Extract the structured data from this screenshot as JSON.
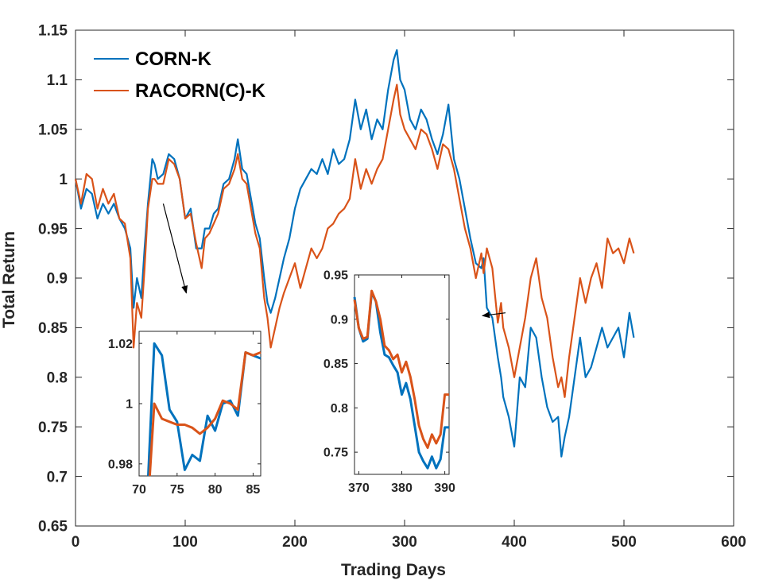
{
  "chart_data": [
    {
      "type": "line",
      "role": "main",
      "title": "",
      "xlabel": "Trading Days",
      "ylabel": "Total Return",
      "xlim": [
        0,
        600
      ],
      "ylim": [
        0.65,
        1.15
      ],
      "xticks": [
        0,
        100,
        200,
        300,
        400,
        500,
        600
      ],
      "yticks": [
        0.65,
        0.7,
        0.75,
        0.8,
        0.85,
        0.9,
        0.95,
        1,
        1.05,
        1.1,
        1.15
      ],
      "xtick_labels": [
        "0",
        "100",
        "200",
        "300",
        "400",
        "500",
        "600"
      ],
      "ytick_labels": [
        "0.65",
        "0.7",
        "0.75",
        "0.8",
        "0.85",
        "0.9",
        "0.95",
        "1",
        "1.05",
        "1.1",
        "1.15"
      ],
      "grid": false,
      "legend_position": "top-left",
      "series": [
        {
          "name": "CORN-K",
          "color": "#0072BD",
          "x": [
            0,
            5,
            10,
            15,
            20,
            25,
            30,
            35,
            40,
            45,
            50,
            53,
            56,
            60,
            63,
            66,
            70,
            72,
            75,
            80,
            85,
            90,
            95,
            100,
            105,
            110,
            115,
            118,
            122,
            126,
            130,
            135,
            140,
            145,
            148,
            152,
            156,
            160,
            164,
            168,
            172,
            175,
            178,
            182,
            186,
            190,
            195,
            200,
            205,
            210,
            215,
            220,
            225,
            230,
            235,
            240,
            245,
            250,
            255,
            260,
            265,
            270,
            275,
            280,
            285,
            290,
            293,
            296,
            300,
            305,
            310,
            315,
            320,
            325,
            330,
            335,
            340,
            345,
            350,
            355,
            360,
            365,
            370,
            372,
            375,
            380,
            385,
            388,
            390,
            395,
            400,
            405,
            410,
            415,
            420,
            425,
            430,
            435,
            440,
            443,
            446,
            450,
            455,
            460,
            465,
            470,
            475,
            480,
            485,
            490,
            495,
            500,
            505,
            509
          ],
          "y": [
            1.0,
            0.97,
            0.99,
            0.985,
            0.96,
            0.975,
            0.965,
            0.975,
            0.96,
            0.95,
            0.93,
            0.87,
            0.9,
            0.88,
            0.93,
            0.975,
            1.02,
            1.015,
            1.0,
            1.005,
            1.025,
            1.02,
            1.0,
            0.96,
            0.97,
            0.93,
            0.93,
            0.95,
            0.95,
            0.965,
            0.97,
            0.995,
            1.0,
            1.02,
            1.04,
            1.01,
            1.005,
            0.98,
            0.955,
            0.94,
            0.9,
            0.875,
            0.865,
            0.88,
            0.9,
            0.92,
            0.94,
            0.97,
            0.99,
            1.0,
            1.01,
            1.005,
            1.02,
            1.005,
            1.03,
            1.015,
            1.02,
            1.04,
            1.08,
            1.05,
            1.07,
            1.04,
            1.06,
            1.05,
            1.09,
            1.12,
            1.13,
            1.1,
            1.09,
            1.06,
            1.05,
            1.07,
            1.06,
            1.04,
            1.025,
            1.045,
            1.075,
            1.02,
            1.0,
            0.97,
            0.94,
            0.915,
            0.91,
            0.92,
            0.87,
            0.86,
            0.82,
            0.8,
            0.78,
            0.76,
            0.73,
            0.8,
            0.79,
            0.85,
            0.84,
            0.8,
            0.77,
            0.755,
            0.76,
            0.72,
            0.74,
            0.76,
            0.8,
            0.84,
            0.8,
            0.81,
            0.83,
            0.85,
            0.83,
            0.84,
            0.85,
            0.82,
            0.865,
            0.84
          ]
        },
        {
          "name": "RACORN(C)-K",
          "color": "#D95319",
          "x": [
            0,
            5,
            10,
            15,
            20,
            25,
            30,
            35,
            40,
            45,
            50,
            53,
            56,
            60,
            63,
            66,
            70,
            72,
            75,
            80,
            85,
            90,
            95,
            100,
            105,
            110,
            115,
            118,
            122,
            126,
            130,
            135,
            140,
            145,
            148,
            152,
            156,
            160,
            164,
            168,
            172,
            175,
            178,
            182,
            186,
            190,
            195,
            200,
            205,
            210,
            215,
            220,
            225,
            230,
            235,
            240,
            245,
            250,
            255,
            260,
            265,
            270,
            275,
            280,
            285,
            290,
            293,
            296,
            300,
            305,
            310,
            315,
            320,
            325,
            330,
            335,
            340,
            345,
            350,
            355,
            360,
            365,
            370,
            372,
            375,
            380,
            385,
            388,
            390,
            395,
            400,
            405,
            410,
            415,
            420,
            425,
            430,
            435,
            440,
            443,
            446,
            450,
            455,
            460,
            465,
            470,
            475,
            480,
            485,
            490,
            495,
            500,
            505,
            509
          ],
          "y": [
            1.0,
            0.975,
            1.005,
            1.0,
            0.97,
            0.99,
            0.975,
            0.985,
            0.96,
            0.955,
            0.92,
            0.83,
            0.875,
            0.86,
            0.91,
            0.97,
            1.0,
            1.0,
            0.995,
            0.995,
            1.02,
            1.015,
            1.0,
            0.96,
            0.965,
            0.935,
            0.91,
            0.94,
            0.945,
            0.955,
            0.965,
            0.99,
            0.995,
            1.01,
            1.025,
            1.0,
            0.995,
            0.97,
            0.945,
            0.93,
            0.88,
            0.86,
            0.83,
            0.85,
            0.87,
            0.885,
            0.9,
            0.915,
            0.89,
            0.91,
            0.93,
            0.92,
            0.93,
            0.95,
            0.955,
            0.965,
            0.97,
            0.98,
            1.02,
            0.99,
            1.01,
            0.995,
            1.01,
            1.02,
            1.05,
            1.08,
            1.095,
            1.065,
            1.05,
            1.04,
            1.03,
            1.05,
            1.045,
            1.03,
            1.01,
            1.035,
            1.03,
            1.01,
            0.98,
            0.95,
            0.93,
            0.9,
            0.925,
            0.905,
            0.93,
            0.91,
            0.855,
            0.875,
            0.85,
            0.83,
            0.8,
            0.83,
            0.86,
            0.9,
            0.92,
            0.88,
            0.86,
            0.82,
            0.79,
            0.8,
            0.78,
            0.82,
            0.86,
            0.9,
            0.875,
            0.9,
            0.915,
            0.89,
            0.94,
            0.925,
            0.93,
            0.915,
            0.94,
            0.925
          ]
        }
      ],
      "arrows": [
        {
          "from": [
            80,
            0.975
          ],
          "to": [
            101,
            0.885
          ]
        },
        {
          "from": [
            392,
            0.865
          ],
          "to": [
            371,
            0.862
          ]
        }
      ]
    },
    {
      "type": "line",
      "role": "inset-left",
      "title": "",
      "xlim": [
        70,
        86
      ],
      "ylim": [
        0.976,
        1.024
      ],
      "xticks": [
        70,
        75,
        80,
        85
      ],
      "yticks": [
        0.98,
        1.0,
        1.02
      ],
      "xtick_labels": [
        "70",
        "75",
        "80",
        "85"
      ],
      "ytick_labels": [
        "0.98",
        "1",
        "1.02"
      ],
      "series": [
        {
          "name": "CORN-K",
          "color": "#0072BD",
          "x": [
            71.2,
            72,
            73,
            74,
            75,
            76,
            77,
            78,
            79,
            80,
            81,
            82,
            83,
            84,
            85,
            86
          ],
          "y": [
            0.976,
            1.02,
            1.016,
            0.998,
            0.994,
            0.978,
            0.983,
            0.981,
            0.996,
            0.991,
            1.0,
            1.001,
            0.996,
            1.017,
            1.016,
            1.015
          ]
        },
        {
          "name": "RACORN(C)-K",
          "color": "#D95319",
          "x": [
            71.4,
            72,
            73,
            74,
            75,
            76,
            77,
            78,
            79,
            80,
            81,
            82,
            83,
            84,
            85,
            86
          ],
          "y": [
            0.976,
            1.0,
            0.995,
            0.994,
            0.993,
            0.993,
            0.992,
            0.99,
            0.992,
            0.995,
            1.001,
            1.0,
            0.998,
            1.017,
            1.016,
            1.017
          ]
        }
      ]
    },
    {
      "type": "line",
      "role": "inset-right",
      "title": "",
      "xlim": [
        369,
        391
      ],
      "ylim": [
        0.725,
        0.95
      ],
      "xticks": [
        370,
        380,
        390
      ],
      "yticks": [
        0.75,
        0.8,
        0.85,
        0.9,
        0.95
      ],
      "xtick_labels": [
        "370",
        "380",
        "390"
      ],
      "ytick_labels": [
        "0.75",
        "0.8",
        "0.85",
        "0.9",
        "0.95"
      ],
      "series": [
        {
          "name": "CORN-K",
          "color": "#0072BD",
          "x": [
            369,
            370,
            371,
            372,
            373,
            374,
            375,
            376,
            377,
            378,
            379,
            380,
            381,
            382,
            383,
            384,
            385,
            386,
            387,
            388,
            389,
            390,
            391
          ],
          "y": [
            0.925,
            0.89,
            0.875,
            0.878,
            0.93,
            0.92,
            0.885,
            0.86,
            0.857,
            0.848,
            0.84,
            0.815,
            0.828,
            0.81,
            0.78,
            0.75,
            0.74,
            0.732,
            0.745,
            0.732,
            0.742,
            0.778,
            0.778
          ]
        },
        {
          "name": "RACORN(C)-K",
          "color": "#D95319",
          "x": [
            369,
            370,
            371,
            372,
            373,
            374,
            375,
            376,
            377,
            378,
            379,
            380,
            381,
            382,
            383,
            384,
            385,
            386,
            387,
            388,
            389,
            390,
            391
          ],
          "y": [
            0.922,
            0.89,
            0.878,
            0.88,
            0.932,
            0.92,
            0.9,
            0.87,
            0.865,
            0.855,
            0.86,
            0.84,
            0.852,
            0.835,
            0.81,
            0.78,
            0.765,
            0.755,
            0.77,
            0.76,
            0.77,
            0.815,
            0.815
          ]
        }
      ]
    }
  ]
}
